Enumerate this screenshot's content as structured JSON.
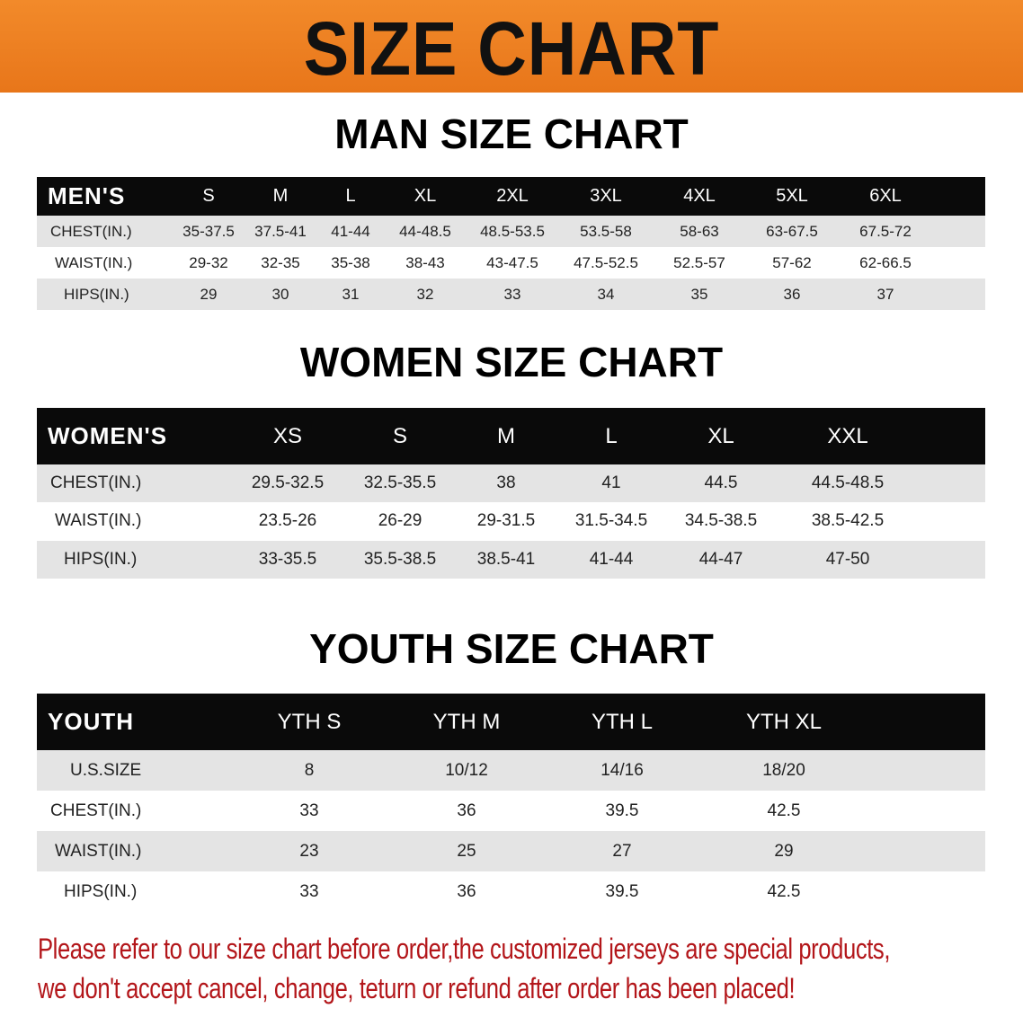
{
  "banner": {
    "title": "SIZE CHART",
    "color": "#ee801f"
  },
  "men": {
    "title": "MAN SIZE CHART",
    "headers": [
      "MEN'S",
      "S",
      "M",
      "L",
      "XL",
      "2XL",
      "3XL",
      "4XL",
      "5XL",
      "6XL"
    ],
    "rows": [
      [
        "CHEST(IN.)",
        "35-37.5",
        "37.5-41",
        "41-44",
        "44-48.5",
        "48.5-53.5",
        "53.5-58",
        "58-63",
        "63-67.5",
        "67.5-72"
      ],
      [
        "WAIST(IN.)",
        "29-32",
        "32-35",
        "35-38",
        "38-43",
        "43-47.5",
        "47.5-52.5",
        "52.5-57",
        "57-62",
        "62-66.5"
      ],
      [
        "HIPS(IN.)",
        "29",
        "30",
        "31",
        "32",
        "33",
        "34",
        "35",
        "36",
        "37"
      ]
    ]
  },
  "women": {
    "title": "WOMEN SIZE CHART",
    "headers": [
      "WOMEN'S",
      "XS",
      "S",
      "M",
      "L",
      "XL",
      "XXL"
    ],
    "rows": [
      [
        "CHEST(IN.)",
        "29.5-32.5",
        "32.5-35.5",
        "38",
        "41",
        "44.5",
        "44.5-48.5"
      ],
      [
        "WAIST(IN.)",
        "23.5-26",
        "26-29",
        "29-31.5",
        "31.5-34.5",
        "34.5-38.5",
        "38.5-42.5"
      ],
      [
        "HIPS(IN.)",
        "33-35.5",
        "35.5-38.5",
        "38.5-41",
        "41-44",
        "44-47",
        "47-50"
      ]
    ]
  },
  "youth": {
    "title": "YOUTH SIZE CHART",
    "headers": [
      "YOUTH",
      "YTH S",
      "YTH M",
      "YTH L",
      "YTH XL"
    ],
    "rows": [
      [
        "U.S.SIZE",
        "8",
        "10/12",
        "14/16",
        "18/20"
      ],
      [
        "CHEST(IN.)",
        "33",
        "36",
        "39.5",
        "42.5"
      ],
      [
        "WAIST(IN.)",
        "23",
        "25",
        "27",
        "29"
      ],
      [
        "HIPS(IN.)",
        "33",
        "36",
        "39.5",
        "42.5"
      ]
    ]
  },
  "notice": {
    "line1": "Please refer to our size chart before order,the customized jerseys are special products,",
    "line2": "we don't accept cancel, change, teturn or refund after order has been placed!",
    "color": "#b3161a"
  }
}
